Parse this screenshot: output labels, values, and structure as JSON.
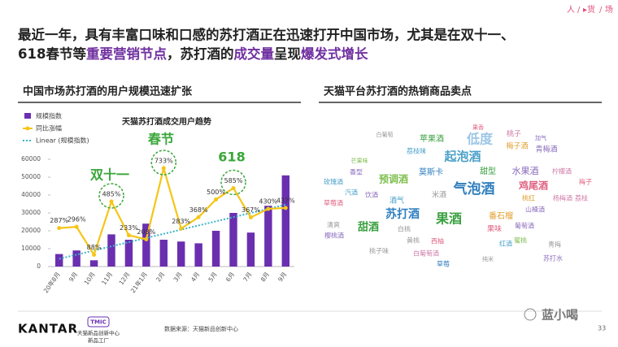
{
  "nav": [
    "人",
    "▸货",
    "场"
  ],
  "headline": {
    "line1": "最近一年，具有丰富口味和口感的苏打酒正在迅速打开中国市场，尤其是在双十一、",
    "line2": [
      {
        "text": "618春节等",
        "highlight": false
      },
      {
        "text": "重要营销节点",
        "highlight": true
      },
      {
        "text": "，苏打酒的",
        "highlight": false
      },
      {
        "text": "成交量",
        "highlight": true
      },
      {
        "text": "呈现",
        "highlight": false
      },
      {
        "text": "爆发式增长",
        "highlight": true
      }
    ]
  },
  "left_title": "中国市场苏打酒的用户规模迅速扩张",
  "right_title": "天猫平台苏打酒的热销商品卖点",
  "chart_data": {
    "type": "bar",
    "title": "天猫苏打酒成交用户趋势",
    "categories": [
      "20年8月",
      "9月",
      "10月",
      "11月",
      "12月",
      "21年1月",
      "2月",
      "3月",
      "4月",
      "5月",
      "6月",
      "7月",
      "8月",
      "9月"
    ],
    "series": [
      {
        "name": "规模指数",
        "color": "#6a2fb0",
        "values": [
          7000,
          9000,
          3500,
          18000,
          15000,
          24000,
          15000,
          14000,
          13000,
          20000,
          30000,
          19000,
          34000,
          51000
        ]
      },
      {
        "name": "同比涨幅",
        "color": "#f5c518",
        "axis": "y2",
        "type": "line",
        "values": [
          287,
          296,
          88,
          485,
          233,
          203,
          733,
          283,
          368,
          500,
          585,
          367,
          430,
          437
        ],
        "value_labels": [
          "287%",
          "296%",
          "88%",
          "485%",
          "233%",
          "203%",
          "733%",
          "283%",
          "368%",
          "500%",
          "585%",
          "367%",
          "430%",
          "437%"
        ]
      }
    ],
    "trendline": {
      "name": "Linear (规模指数)",
      "color": "#3cb4c8"
    },
    "annotations": [
      "双十一",
      "春节",
      "618"
    ],
    "ylim": [
      0,
      60000
    ],
    "yticks": [
      0,
      10000,
      20000,
      30000,
      40000,
      50000,
      60000
    ],
    "y2lim": [
      0,
      800
    ],
    "grid": false
  },
  "wordcloud": {
    "words": [
      "果香",
      "苹果酒",
      "低度",
      "桃子",
      "加气",
      "白葡萄",
      "荔枝味",
      "起泡酒",
      "梅子酒",
      "青梅酒",
      "芒果味",
      "香型",
      "莫斯卡",
      "甜型",
      "水果酒",
      "柠檬酒",
      "玫瑰酒",
      "预调酒",
      "鸡尾酒",
      "气泡酒",
      "梅子",
      "汽酒",
      "饮酒",
      "米酒",
      "桃红",
      "荔枝",
      "杨梅酒",
      "草莓酒",
      "酒气",
      "苏打酒",
      "果酒",
      "番石榴",
      "山楂酒",
      "甜酒",
      "清爽",
      "白桃",
      "果味",
      "葡萄酒",
      "黄桃",
      "樱桃酒",
      "西柚",
      "蜜桃",
      "红酒",
      "青梅",
      "苏打水",
      "桃子味",
      "白葡萄酒",
      "纯米",
      "草莓"
    ]
  },
  "footer": {
    "brand": "KANTAR",
    "tmic": "TMIC",
    "tmic_name": "天猫新品创新中心",
    "tmic_sub": "新品工厂",
    "source": "数据来源：天猫新品创新中心",
    "wechat": "蓝小喝",
    "page": "33"
  }
}
